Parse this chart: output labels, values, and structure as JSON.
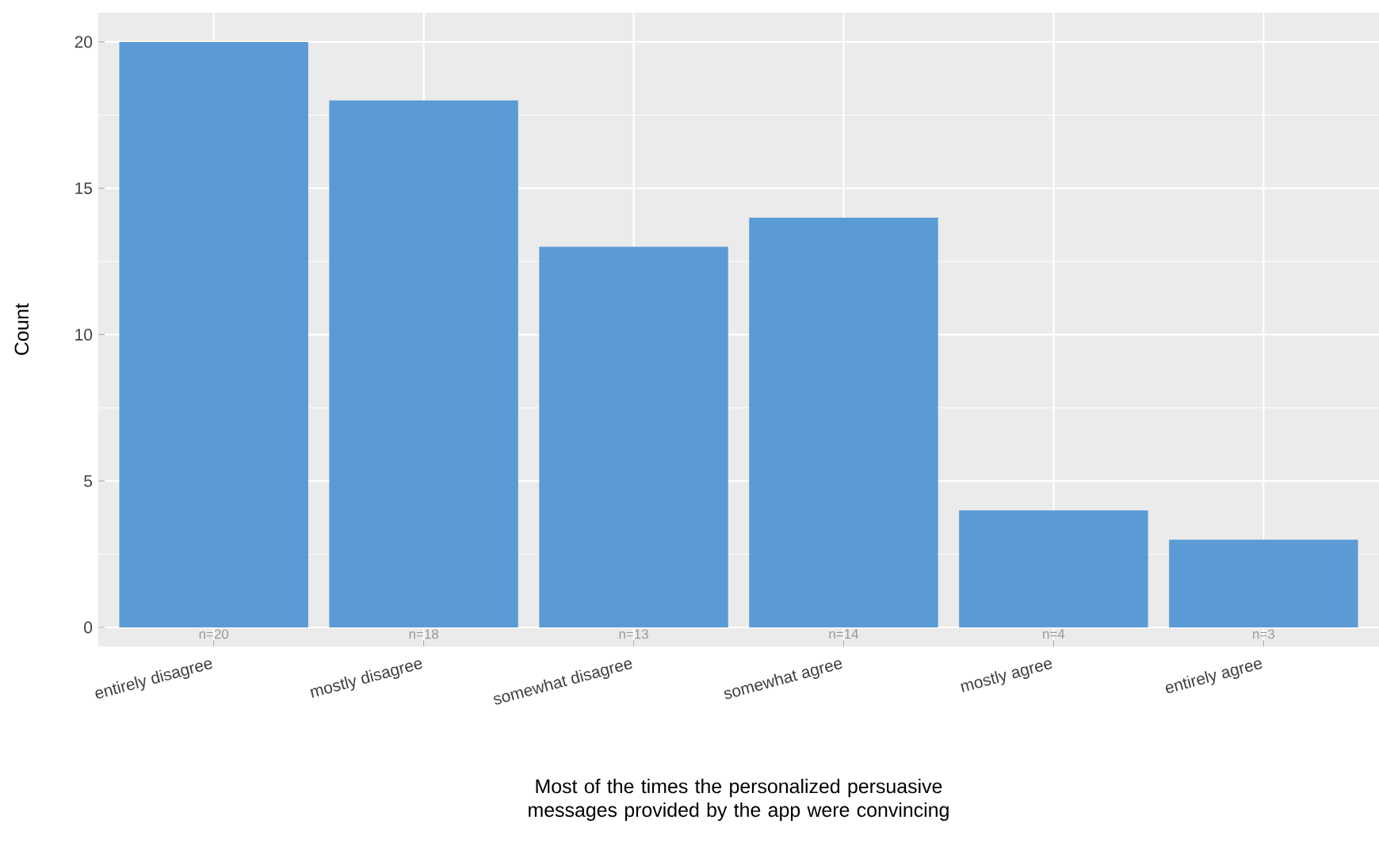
{
  "chart_data": {
    "type": "bar",
    "categories": [
      "entirely disagree",
      "mostly disagree",
      "somewhat disagree",
      "somewhat agree",
      "mostly agree",
      "entirely agree"
    ],
    "values": [
      20,
      18,
      13,
      14,
      4,
      3
    ],
    "value_labels": [
      "n=20",
      "n=18",
      "n=13",
      "n=14",
      "n=4",
      "n=3"
    ],
    "color": "#5b9bd5",
    "xlabel": "Most of the times the personalized persuasive messages provided by the app were convincing",
    "ylabel": "Count",
    "ylim": [
      -0.65,
      21
    ],
    "yticks": [
      0,
      5,
      10,
      15,
      20
    ],
    "grid": true
  }
}
